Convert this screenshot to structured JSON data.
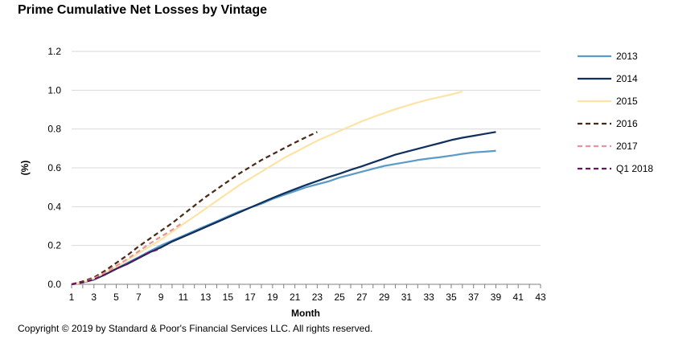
{
  "chart_data": {
    "type": "line",
    "title": "Prime Cumulative Net Losses by Vintage",
    "xlabel": "Month",
    "ylabel": "(%)",
    "xlim": [
      1,
      43
    ],
    "ylim": [
      0,
      1.2
    ],
    "xticks": [
      1,
      3,
      5,
      7,
      9,
      11,
      13,
      15,
      17,
      19,
      21,
      23,
      25,
      27,
      29,
      31,
      33,
      35,
      37,
      39,
      41,
      43
    ],
    "yticks": [
      "0.0",
      "0.2",
      "0.4",
      "0.6",
      "0.8",
      "1.0",
      "1.2"
    ],
    "grid": "horizontal",
    "legend_position": "right",
    "series": [
      {
        "name": "2013",
        "color": "#5b9bc8",
        "dash": "solid",
        "x": [
          1,
          2,
          3,
          4,
          5,
          6,
          7,
          8,
          9,
          10,
          11,
          12,
          13,
          14,
          15,
          16,
          17,
          18,
          19,
          20,
          21,
          22,
          23,
          24,
          25,
          26,
          27,
          28,
          29,
          30,
          31,
          32,
          33,
          34,
          35,
          36,
          37,
          38,
          39
        ],
        "y": [
          0,
          0.01,
          0.025,
          0.05,
          0.08,
          0.11,
          0.14,
          0.17,
          0.2,
          0.225,
          0.25,
          0.275,
          0.3,
          0.325,
          0.35,
          0.375,
          0.395,
          0.415,
          0.44,
          0.46,
          0.48,
          0.5,
          0.515,
          0.53,
          0.55,
          0.565,
          0.58,
          0.595,
          0.61,
          0.62,
          0.63,
          0.64,
          0.648,
          0.655,
          0.663,
          0.672,
          0.68,
          0.683,
          0.688
        ]
      },
      {
        "name": "2014",
        "color": "#0f2f5e",
        "dash": "solid",
        "x": [
          1,
          2,
          3,
          4,
          5,
          6,
          7,
          8,
          9,
          10,
          11,
          12,
          13,
          14,
          15,
          16,
          17,
          18,
          19,
          20,
          21,
          22,
          23,
          24,
          25,
          26,
          27,
          28,
          29,
          30,
          31,
          32,
          33,
          34,
          35,
          36,
          37,
          38,
          39
        ],
        "y": [
          0,
          0.01,
          0.025,
          0.05,
          0.08,
          0.105,
          0.135,
          0.165,
          0.19,
          0.22,
          0.245,
          0.27,
          0.295,
          0.32,
          0.345,
          0.37,
          0.395,
          0.42,
          0.445,
          0.468,
          0.49,
          0.512,
          0.532,
          0.552,
          0.57,
          0.59,
          0.608,
          0.628,
          0.648,
          0.668,
          0.683,
          0.698,
          0.713,
          0.728,
          0.743,
          0.755,
          0.765,
          0.775,
          0.785
        ]
      },
      {
        "name": "2015",
        "color": "#fde4a6",
        "dash": "solid",
        "x": [
          1,
          2,
          3,
          4,
          5,
          6,
          7,
          8,
          9,
          10,
          11,
          12,
          13,
          14,
          15,
          16,
          17,
          18,
          19,
          20,
          21,
          22,
          23,
          24,
          25,
          26,
          27,
          28,
          29,
          30,
          31,
          32,
          33,
          34,
          35,
          36
        ],
        "y": [
          0,
          0.01,
          0.03,
          0.06,
          0.09,
          0.125,
          0.16,
          0.195,
          0.23,
          0.27,
          0.31,
          0.35,
          0.39,
          0.43,
          0.47,
          0.51,
          0.545,
          0.58,
          0.615,
          0.65,
          0.68,
          0.71,
          0.74,
          0.765,
          0.79,
          0.815,
          0.84,
          0.862,
          0.882,
          0.902,
          0.92,
          0.937,
          0.952,
          0.965,
          0.978,
          0.993
        ]
      },
      {
        "name": "2016",
        "color": "#4a2a16",
        "dash": "dashed",
        "x": [
          1,
          2,
          3,
          4,
          5,
          6,
          7,
          8,
          9,
          10,
          11,
          12,
          13,
          14,
          15,
          16,
          17,
          18,
          19,
          20,
          21,
          22,
          23
        ],
        "y": [
          0,
          0.015,
          0.035,
          0.07,
          0.11,
          0.15,
          0.195,
          0.235,
          0.275,
          0.315,
          0.36,
          0.405,
          0.45,
          0.49,
          0.53,
          0.57,
          0.605,
          0.64,
          0.67,
          0.7,
          0.73,
          0.758,
          0.785
        ]
      },
      {
        "name": "2017",
        "color": "#e6959f",
        "dash": "dashed",
        "x": [
          1,
          2,
          3,
          4,
          5,
          6,
          7,
          8,
          9,
          10,
          11
        ],
        "y": [
          0,
          0.01,
          0.03,
          0.06,
          0.095,
          0.13,
          0.17,
          0.21,
          0.245,
          0.28,
          0.32
        ]
      },
      {
        "name": "Q1 2018",
        "color": "#6a1260",
        "dash": "dashed",
        "x": [
          1,
          2,
          3,
          4,
          5,
          6,
          7,
          8,
          9
        ],
        "y": [
          0,
          0.01,
          0.025,
          0.05,
          0.08,
          0.105,
          0.135,
          0.165,
          0.185
        ]
      }
    ]
  },
  "footer": {
    "copyright": "Copyright © 2019 by Standard & Poor's Financial Services LLC. All rights reserved."
  }
}
